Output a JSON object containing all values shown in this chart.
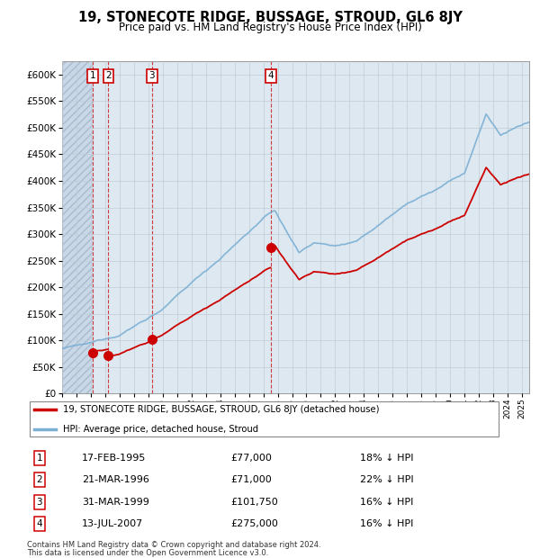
{
  "title": "19, STONECOTE RIDGE, BUSSAGE, STROUD, GL6 8JY",
  "subtitle": "Price paid vs. HM Land Registry's House Price Index (HPI)",
  "legend_line1": "19, STONECOTE RIDGE, BUSSAGE, STROUD, GL6 8JY (detached house)",
  "legend_line2": "HPI: Average price, detached house, Stroud",
  "footer_line1": "Contains HM Land Registry data © Crown copyright and database right 2024.",
  "footer_line2": "This data is licensed under the Open Government Licence v3.0.",
  "sales": [
    {
      "label": "1",
      "date_num": 1995.125,
      "price": 77000
    },
    {
      "label": "2",
      "date_num": 1996.22,
      "price": 71000
    },
    {
      "label": "3",
      "date_num": 1999.25,
      "price": 101750
    },
    {
      "label": "4",
      "date_num": 2007.54,
      "price": 275000
    }
  ],
  "table_rows": [
    [
      "1",
      "17-FEB-1995",
      "£77,000",
      "18% ↓ HPI"
    ],
    [
      "2",
      "21-MAR-1996",
      "£71,000",
      "22% ↓ HPI"
    ],
    [
      "3",
      "31-MAR-1999",
      "£101,750",
      "16% ↓ HPI"
    ],
    [
      "4",
      "13-JUL-2007",
      "£275,000",
      "16% ↓ HPI"
    ]
  ],
  "hpi_color": "#7bafd4",
  "price_color": "#cc0000",
  "bg_color": "#dde8f0",
  "grid_color": "#c0cdd8",
  "ylim": [
    0,
    625000
  ],
  "yticks": [
    0,
    50000,
    100000,
    150000,
    200000,
    250000,
    300000,
    350000,
    400000,
    450000,
    500000,
    550000,
    600000
  ],
  "xstart": 1993.0,
  "xend": 2025.5
}
